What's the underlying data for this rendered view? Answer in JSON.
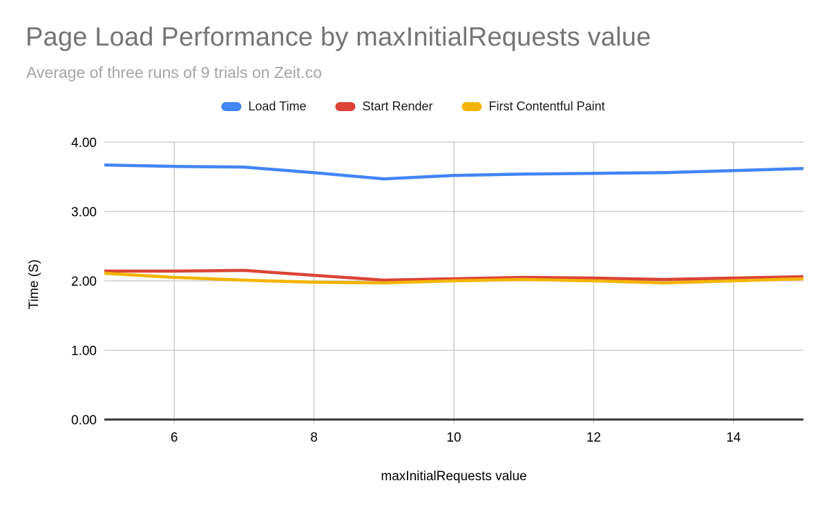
{
  "header": {
    "title": "Page Load Performance by maxInitialRequests value",
    "subtitle": "Average of three runs of 9 trials on Zeit.co"
  },
  "chart_data": {
    "type": "line",
    "title": "Page Load Performance by maxInitialRequests value",
    "subtitle": "Average of three runs of 9 trials on Zeit.co",
    "xlabel": "maxInitialRequests value",
    "ylabel": "Time (S)",
    "x": [
      5,
      6,
      7,
      8,
      9,
      10,
      11,
      12,
      13,
      14,
      15
    ],
    "series": [
      {
        "name": "Load Time",
        "color": "#4285F4",
        "values": [
          3.67,
          3.65,
          3.64,
          3.56,
          3.47,
          3.52,
          3.54,
          3.55,
          3.56,
          3.59,
          3.62
        ]
      },
      {
        "name": "Start Render",
        "color": "#DB4437",
        "values": [
          2.14,
          2.14,
          2.15,
          2.08,
          2.01,
          2.03,
          2.05,
          2.04,
          2.02,
          2.04,
          2.06
        ]
      },
      {
        "name": "First Contentful Paint",
        "color": "#F4B400",
        "values": [
          2.11,
          2.05,
          2.01,
          1.98,
          1.97,
          2.0,
          2.02,
          2.0,
          1.97,
          2.0,
          2.03
        ]
      }
    ],
    "xlim": [
      5,
      15
    ],
    "ylim": [
      0,
      4
    ],
    "x_ticks": [
      6,
      8,
      10,
      12,
      14
    ],
    "y_ticks": [
      0,
      1,
      2,
      3,
      4
    ],
    "y_tick_labels": [
      "0.00",
      "1.00",
      "2.00",
      "3.00",
      "4.00"
    ],
    "grid": true,
    "legend_position": "top"
  },
  "colors": {
    "title_text": "#757575",
    "subtitle_text": "#a5a5a5",
    "tick_text": "#000000",
    "gridline": "#cccccc",
    "axis_baseline": "#333333",
    "background": "#ffffff"
  }
}
